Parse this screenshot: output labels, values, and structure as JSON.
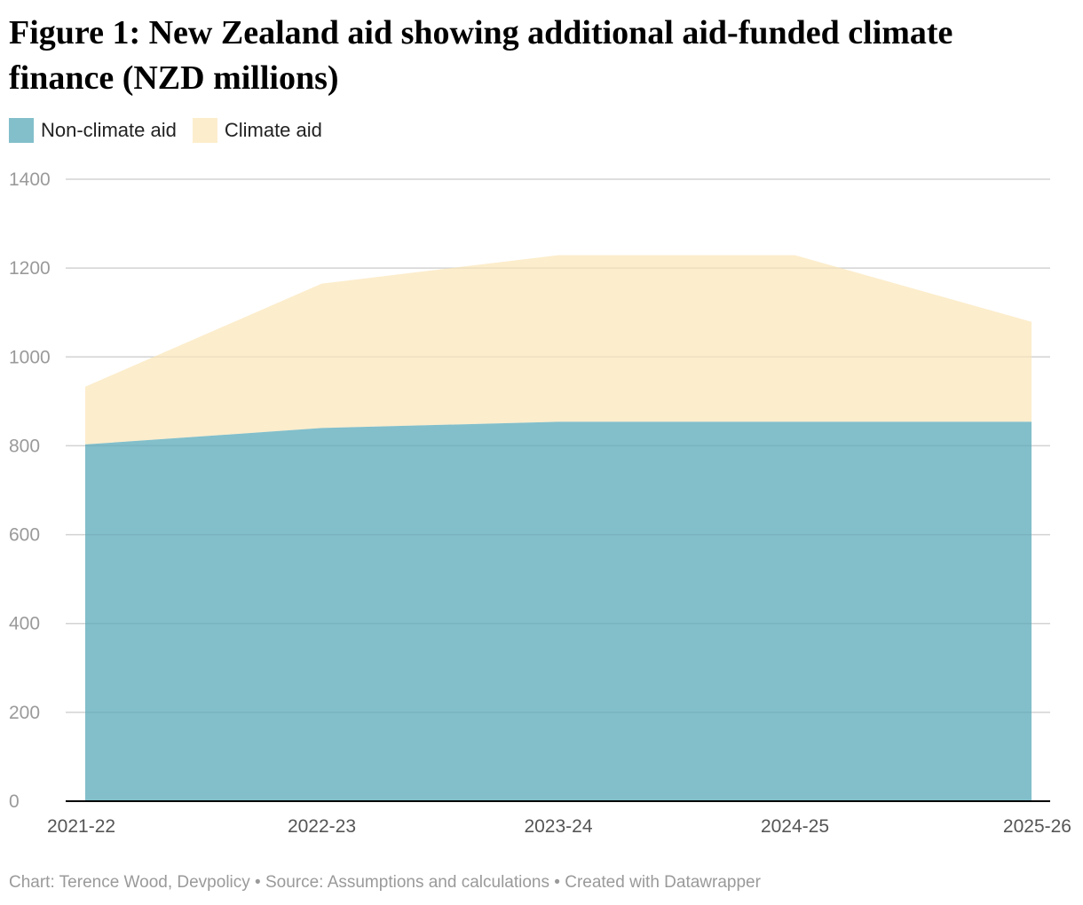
{
  "title": "Figure 1: New Zealand aid showing additional aid-funded climate finance (NZD millions)",
  "footer": {
    "credit": "Chart: Terence Wood, Devpolicy",
    "source": "Source: Assumptions and calculations",
    "tool": "Created with Datawrapper",
    "separator": " • "
  },
  "colors": {
    "non_climate": "#82bfcb",
    "climate": "#fcedcc",
    "grid": "#e1e1e1",
    "axis": "#000000",
    "tick_text": "#9a9a9a",
    "x_tick_text": "#555555"
  },
  "chart_data": {
    "type": "area",
    "stacked": true,
    "x": [
      "2021-22",
      "2022-23",
      "2023-24",
      "2024-25",
      "2025-26"
    ],
    "series": [
      {
        "name": "Non-climate aid",
        "color": "#82bfcb",
        "values": [
          803,
          840,
          854,
          854,
          854
        ]
      },
      {
        "name": "Climate aid",
        "color": "#fcedcc",
        "values": [
          130,
          325,
          375,
          375,
          225
        ]
      }
    ],
    "ylim": [
      0,
      1400
    ],
    "yticks": [
      0,
      200,
      400,
      600,
      800,
      1000,
      1200,
      1400
    ],
    "grid": true,
    "legend": "top-left"
  }
}
